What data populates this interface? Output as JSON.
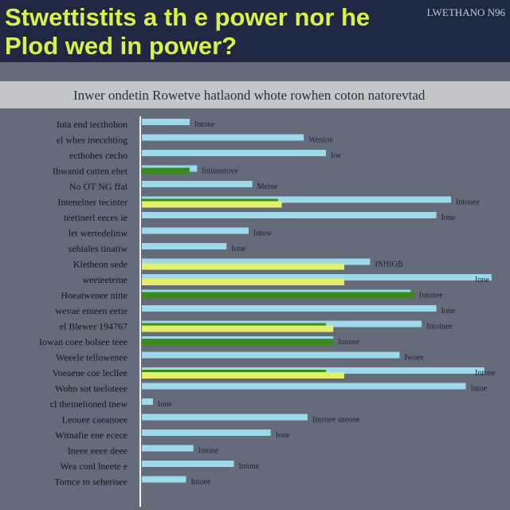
{
  "header": {
    "title": "Stwettistits a th e power nor he Plod wed in power?",
    "badge": "LWETHANO N96"
  },
  "subtitle": "Inwer ondetin Rowetve hatlaond whote rowhen coton natorevtad",
  "colors": {
    "background": "#656b78",
    "header": "#1f2742",
    "title": "#d8f24a",
    "bar_blue": "#9ed9ea",
    "bar_green": "#3d8a1c",
    "bar_yellow": "#e4f06a",
    "axis": "#f2f2f2"
  },
  "chart_data": {
    "type": "bar",
    "orientation": "horizontal",
    "xlim": [
      0,
      100
    ],
    "categories": [
      "Inta end iecthohon",
      "el whes inecehtiog",
      "ecthohes cecho",
      "Ihwanid catten ehet",
      "No OT NG ffal",
      "Intenelner tecinter",
      "teetinerl eeces ie",
      "let wertedelinw",
      "sehiales tinatiw",
      "Kletheon sede",
      "weeteeteme",
      "Hoeatwenee nitte",
      "wevae enieen eetie",
      "el Blewer 194767",
      "Iowan coee bolsee teee",
      "Weeele tellowenee",
      "Voeaene coe lecllee",
      "Wohn sot teeloteee",
      "cl theinelioned tnew",
      "Leouee caeanoee",
      "Witnafie ene ecece",
      "Ineee eeee deee",
      "Wea conl lneete e",
      "Tomce to seherisee"
    ],
    "series": [
      {
        "color": "bar_blue",
        "values": [
          13,
          44,
          50,
          15,
          30,
          84,
          80,
          29,
          23,
          62,
          95,
          73,
          80,
          76,
          52,
          70,
          93,
          88,
          3,
          45,
          35,
          14,
          25,
          12
        ]
      },
      {
        "color": "bar_green",
        "values": [
          null,
          null,
          null,
          13,
          null,
          37,
          null,
          null,
          null,
          null,
          null,
          74,
          null,
          50,
          52,
          null,
          50,
          null,
          null,
          null,
          null,
          null,
          null,
          null
        ]
      },
      {
        "color": "bar_yellow",
        "values": [
          null,
          null,
          null,
          null,
          null,
          38,
          null,
          null,
          null,
          55,
          55,
          null,
          null,
          52,
          null,
          null,
          55,
          null,
          null,
          null,
          null,
          null,
          null,
          null
        ]
      }
    ],
    "data_labels": [
      "Intone",
      "Wenion",
      "Ioe",
      "Intinuetove",
      "Meine",
      "Intouee",
      "Ione",
      "Intow",
      "Ione",
      "INHIGB",
      "Ione",
      "Intonee",
      "Ione",
      "Intoinee",
      "Ioneee",
      "Iwoee",
      "Intone",
      "Intoe",
      "Ione",
      "Intenee sneone",
      "Ione",
      "Intone",
      "Intone",
      "Intoee"
    ]
  }
}
